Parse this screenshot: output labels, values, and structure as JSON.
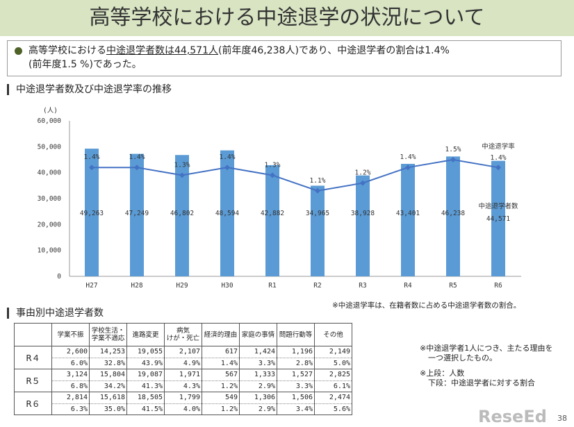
{
  "title": "高等学校における中途退学の状況について",
  "summary": {
    "pre": "高等学校における",
    "underlined": "中途退学者数は44,571人",
    "post": "(前年度46,238人)であり、中途退学者の割合は1.4%",
    "line2": "(前年度1.5 %)であった。"
  },
  "section1": "中途退学者数及び中途退学率の推移",
  "section2": "事由別中途退学者数",
  "chart_data": {
    "type": "bar+line",
    "categories": [
      "H27",
      "H28",
      "H29",
      "H30",
      "R1",
      "R2",
      "R3",
      "R4",
      "R5",
      "R6"
    ],
    "series": [
      {
        "name": "中途退学者数",
        "type": "bar",
        "values": [
          49263,
          47249,
          46802,
          48594,
          42882,
          34965,
          38928,
          43401,
          46238,
          44571
        ],
        "labels": [
          "49,263",
          "47,249",
          "46,802",
          "48,594",
          "42,882",
          "34,965",
          "38,928",
          "43,401",
          "46,238",
          "44,571"
        ]
      },
      {
        "name": "中途退学率",
        "type": "line",
        "values": [
          1.4,
          1.4,
          1.3,
          1.4,
          1.3,
          1.1,
          1.2,
          1.4,
          1.5,
          1.4
        ],
        "labels": [
          "1.4%",
          "1.4%",
          "1.3%",
          "1.4%",
          "1.3%",
          "1.1%",
          "1.2%",
          "1.4%",
          "1.5%",
          "1.4%"
        ]
      }
    ],
    "yunit": "(人)",
    "yticks": [
      "0",
      "10,000",
      "20,000",
      "30,000",
      "40,000",
      "50,000",
      "60,000"
    ],
    "ylim": [
      0,
      60000
    ],
    "colors": {
      "bar": "#5b9bd5",
      "line": "#4472c4"
    },
    "grid": false
  },
  "note_rate": "※中途退学率は、在籍者数に占める中途退学者数の割合。",
  "table": {
    "headers": [
      "学業不振",
      "学校生活・\n学業不適応",
      "進路変更",
      "病気\nけが・死亡",
      "経済的理由",
      "家庭の事情",
      "問題行動等",
      "その他"
    ],
    "rows": [
      {
        "label": "R４",
        "counts": [
          "2,600",
          "14,253",
          "19,055",
          "2,107",
          "617",
          "1,424",
          "1,196",
          "2,149"
        ],
        "pcts": [
          "6.0%",
          "32.8%",
          "43.9%",
          "4.9%",
          "1.4%",
          "3.3%",
          "2.8%",
          "5.0%"
        ]
      },
      {
        "label": "R５",
        "counts": [
          "3,124",
          "15,804",
          "19,087",
          "1,971",
          "567",
          "1,333",
          "1,527",
          "2,825"
        ],
        "pcts": [
          "6.8%",
          "34.2%",
          "41.3%",
          "4.3%",
          "1.2%",
          "2.9%",
          "3.3%",
          "6.1%"
        ]
      },
      {
        "label": "R６",
        "counts": [
          "2,814",
          "15,618",
          "18,505",
          "1,799",
          "549",
          "1,306",
          "1,506",
          "2,474"
        ],
        "pcts": [
          "6.3%",
          "35.0%",
          "41.5%",
          "4.0%",
          "1.2%",
          "2.9%",
          "3.4%",
          "5.6%"
        ]
      }
    ]
  },
  "notes": {
    "n1a": "※中途退学者1人につき、主たる理由を",
    "n1b": "一つ選択したもの。",
    "n2a": "※上段：人数",
    "n2b": "下段：中途退学者に対する割合"
  },
  "logo": "ReseEd",
  "page_number": "38"
}
